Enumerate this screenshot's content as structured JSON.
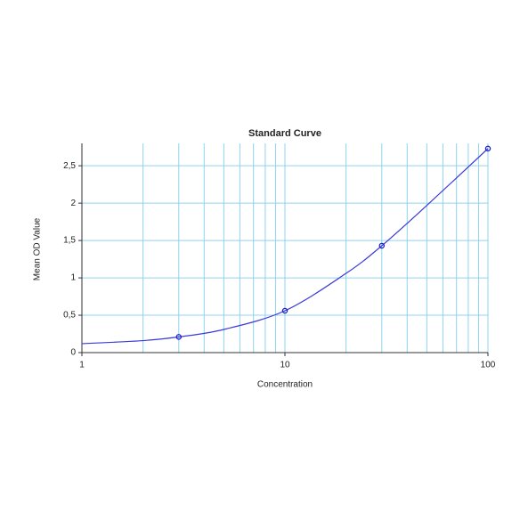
{
  "chart_data": {
    "type": "scatter",
    "title": "Standard Curve",
    "x_label": "Concentration",
    "y_label": "Mean OD Value",
    "x_scale": "log",
    "xlim": [
      1,
      100
    ],
    "xticks": [
      1,
      10,
      100
    ],
    "ylim": [
      0,
      2.8
    ],
    "yticks": [
      0,
      {
        "value": 0.5,
        "label": "0,5"
      },
      1,
      {
        "value": 1.5,
        "label": "1,5"
      },
      2,
      {
        "value": 2.5,
        "label": "2,5"
      }
    ],
    "grid": true,
    "series": [
      {
        "type": "scatter",
        "color": "#1a1ad0",
        "x": [
          3,
          10,
          30,
          100
        ],
        "values": [
          0.21,
          0.56,
          1.43,
          2.73
        ]
      },
      {
        "type": "line",
        "color": "#3a3ad8",
        "x": [
          1,
          2,
          3,
          5,
          10,
          20,
          30,
          50,
          100
        ],
        "values": [
          0.12,
          0.16,
          0.21,
          0.31,
          0.56,
          1.06,
          1.43,
          1.97,
          2.73
        ]
      }
    ]
  }
}
